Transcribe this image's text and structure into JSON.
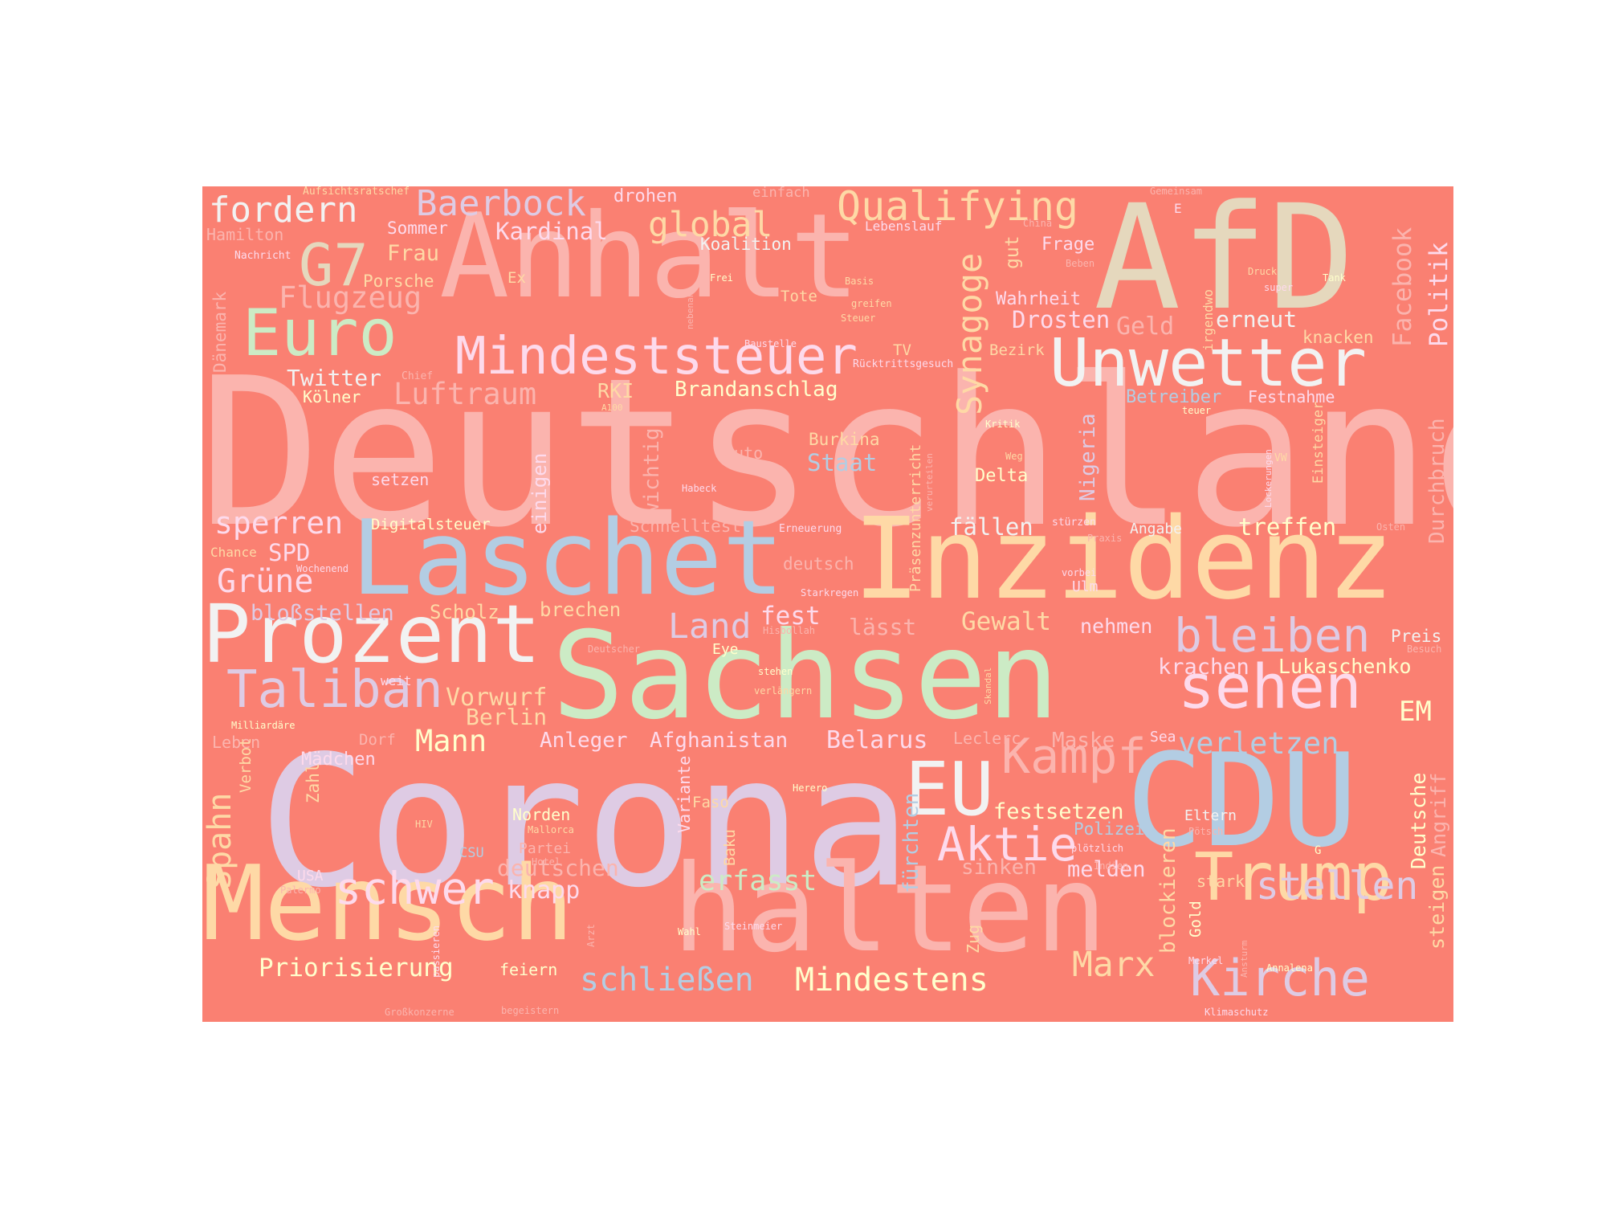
{
  "colors": {
    "canvas_background": "#FA8072",
    "page_background": "#FFFFFF",
    "palette": [
      "#FBB4AE",
      "#B3CDE3",
      "#CCEBC5",
      "#DECBE4",
      "#FED9A6",
      "#FFFFCC",
      "#E5D8BD",
      "#FDDAEC",
      "#F2F2F2"
    ]
  },
  "words": [
    {
      "text": "Deutschland",
      "color": "#FBB4AE"
    },
    {
      "text": "Corona",
      "color": "#DECBE4"
    },
    {
      "text": "Sachsen",
      "color": "#CCEBC5"
    },
    {
      "text": "halten",
      "color": "#FBB4AE"
    },
    {
      "text": "Inzidenz",
      "color": "#FED9A6"
    },
    {
      "text": "Anhalt",
      "color": "#FBB4AE"
    },
    {
      "text": "Laschet",
      "color": "#B3CDE3"
    },
    {
      "text": "AfD",
      "color": "#E5D8BD"
    },
    {
      "text": "Mensch",
      "color": "#FED9A6"
    },
    {
      "text": "CDU",
      "color": "#B3CDE3"
    },
    {
      "text": "Prozent",
      "color": "#F2F2F2"
    },
    {
      "text": "Unwetter",
      "color": "#F2F2F2"
    },
    {
      "text": "EU",
      "color": "#F2F2F2"
    },
    {
      "text": "Trump",
      "color": "#FED9A6"
    },
    {
      "text": "Euro",
      "color": "#CCEBC5"
    },
    {
      "text": "Taliban",
      "color": "#DECBE4"
    },
    {
      "text": "sehen",
      "color": "#FDDAEC"
    },
    {
      "text": "Mindeststeuer",
      "color": "#FDDAEC"
    },
    {
      "text": "Kampf",
      "color": "#FBB4AE"
    },
    {
      "text": "Aktie",
      "color": "#FDDAEC"
    },
    {
      "text": "bleiben",
      "color": "#DECBE4"
    },
    {
      "text": "Kirche",
      "color": "#DECBE4"
    },
    {
      "text": "G7",
      "color": "#E5D8BD"
    },
    {
      "text": "schwer",
      "color": "#FDDAEC"
    },
    {
      "text": "stellen",
      "color": "#DECBE4"
    },
    {
      "text": "Qualifying",
      "color": "#FED9A6"
    },
    {
      "text": "Baerbock",
      "color": "#DECBE4"
    },
    {
      "text": "fordern",
      "color": "#F2F2F2"
    },
    {
      "text": "Synagoge",
      "color": "#FED9A6"
    },
    {
      "text": "Land",
      "color": "#DECBE4"
    },
    {
      "text": "Marx",
      "color": "#FED9A6"
    },
    {
      "text": "Mindestens",
      "color": "#FFFFCC"
    },
    {
      "text": "schließen",
      "color": "#B3CDE3"
    },
    {
      "text": "Grüne",
      "color": "#FDDAEC"
    },
    {
      "text": "Spahn",
      "color": "#FED9A6"
    },
    {
      "text": "global",
      "color": "#FED9A6"
    },
    {
      "text": "Flugzeug",
      "color": "#FBB4AE"
    },
    {
      "text": "Luftraum",
      "color": "#FBB4AE"
    },
    {
      "text": "sperren",
      "color": "#FDDAEC"
    },
    {
      "text": "Mann",
      "color": "#FFFFCC"
    },
    {
      "text": "verletzen",
      "color": "#B3CDE3"
    },
    {
      "text": "Politik",
      "color": "#FDDAEC"
    },
    {
      "text": "Facebook",
      "color": "#FBB4AE"
    },
    {
      "text": "Drosten",
      "color": "#FDDAEC"
    },
    {
      "text": "Geld",
      "color": "#FBB4AE"
    },
    {
      "text": "erneut",
      "color": "#F2F2F2"
    },
    {
      "text": "Kardinal",
      "color": "#FDDAEC"
    },
    {
      "text": "Gewalt",
      "color": "#FED9A6"
    },
    {
      "text": "fest",
      "color": "#FDDAEC"
    },
    {
      "text": "erfasst",
      "color": "#CCEBC5"
    },
    {
      "text": "Belarus",
      "color": "#FDDAEC"
    },
    {
      "text": "Lukaschenko",
      "color": "#FFFFCC"
    },
    {
      "text": "krachen",
      "color": "#FDDAEC"
    },
    {
      "text": "festsetzen",
      "color": "#FFFFCC"
    },
    {
      "text": "Priorisierung",
      "color": "#FFFFCC"
    },
    {
      "text": "Brandanschlag",
      "color": "#FFFFCC"
    },
    {
      "text": "Staat",
      "color": "#B3CDE3"
    },
    {
      "text": "fällen",
      "color": "#F2F2F2"
    },
    {
      "text": "treffen",
      "color": "#FFFFCC"
    },
    {
      "text": "EM",
      "color": "#FFFFCC"
    },
    {
      "text": "Deutsche",
      "color": "#FFFFCC"
    },
    {
      "text": "Vorwurf",
      "color": "#FED9A6"
    },
    {
      "text": "Berlin",
      "color": "#FED9A6"
    },
    {
      "text": "Anleger",
      "color": "#FDDAEC"
    },
    {
      "text": "Afghanistan",
      "color": "#FDDAEC"
    },
    {
      "text": "knapp",
      "color": "#FDDAEC"
    },
    {
      "text": "deutschen",
      "color": "#FBB4AE"
    },
    {
      "text": "Maske",
      "color": "#FBB4AE"
    },
    {
      "text": "melden",
      "color": "#FDDAEC"
    },
    {
      "text": "sinken",
      "color": "#FBB4AE"
    },
    {
      "text": "nehmen",
      "color": "#FDDAEC"
    },
    {
      "text": "lässt",
      "color": "#FBB4AE"
    },
    {
      "text": "Durchbruch",
      "color": "#FBB4AE"
    },
    {
      "text": "Nigeria",
      "color": "#DECBE4"
    },
    {
      "text": "Präsenzunterricht",
      "color": "#FED9A6"
    },
    {
      "text": "fürchten",
      "color": "#B3CDE3"
    },
    {
      "text": "blockieren",
      "color": "#FED9A6"
    },
    {
      "text": "steigen",
      "color": "#FED9A6"
    },
    {
      "text": "Angriff",
      "color": "#FBB4AE"
    },
    {
      "text": "SPD",
      "color": "#FDDAEC"
    },
    {
      "text": "bloßstellen",
      "color": "#DECBE4"
    },
    {
      "text": "Scholz",
      "color": "#FED9A6"
    },
    {
      "text": "brechen",
      "color": "#FED9A6"
    },
    {
      "text": "wichtig",
      "color": "#FBB4AE"
    },
    {
      "text": "einigen",
      "color": "#FDDAEC"
    },
    {
      "text": "Twitter",
      "color": "#F2F2F2"
    },
    {
      "text": "Frau",
      "color": "#FED9A6"
    },
    {
      "text": "Sommer",
      "color": "#FDDAEC"
    },
    {
      "text": "Hamilton",
      "color": "#FBB4AE"
    },
    {
      "text": "drohen",
      "color": "#FDDAEC"
    },
    {
      "text": "Koalition",
      "color": "#F2F2F2"
    },
    {
      "text": "Frage",
      "color": "#FDDAEC"
    },
    {
      "text": "Wahrheit",
      "color": "#FDDAEC"
    },
    {
      "text": "gut",
      "color": "#FED9A6"
    },
    {
      "text": "Betreiber",
      "color": "#B3CDE3"
    },
    {
      "text": "Festnahme",
      "color": "#FDDAEC"
    },
    {
      "text": "knacken",
      "color": "#FED9A6"
    },
    {
      "text": "RKI",
      "color": "#FED9A6"
    },
    {
      "text": "Delta",
      "color": "#FFFFCC"
    },
    {
      "text": "Burkina",
      "color": "#FED9A6"
    },
    {
      "text": "Auto",
      "color": "#FBB4AE"
    },
    {
      "text": "Schnelltest",
      "color": "#FBB4AE"
    },
    {
      "text": "Digitalsteuer",
      "color": "#FFFFCC"
    },
    {
      "text": "setzen",
      "color": "#FDDAEC"
    },
    {
      "text": "Kölner",
      "color": "#FFFFCC"
    },
    {
      "text": "Porsche",
      "color": "#FED9A6"
    },
    {
      "text": "Dänemark",
      "color": "#FBB4AE"
    },
    {
      "text": "Ex",
      "color": "#FED9A6"
    },
    {
      "text": "Tote",
      "color": "#FED9A6"
    },
    {
      "text": "TV",
      "color": "#FED9A6"
    },
    {
      "text": "Bezirk",
      "color": "#FED9A6"
    },
    {
      "text": "Ulm",
      "color": "#FDDAEC"
    },
    {
      "text": "Angabe",
      "color": "#F2F2F2"
    },
    {
      "text": "Einsteiger",
      "color": "#FED9A6"
    },
    {
      "text": "Preis",
      "color": "#F2F2F2"
    },
    {
      "text": "Eye",
      "color": "#FFFFCC"
    },
    {
      "text": "deutsch",
      "color": "#FBB4AE"
    },
    {
      "text": "Leclerc",
      "color": "#FBB4AE"
    },
    {
      "text": "Sea",
      "color": "#FDDAEC"
    },
    {
      "text": "Mädchen",
      "color": "#FDDAEC"
    },
    {
      "text": "Dorf",
      "color": "#FBB4AE"
    },
    {
      "text": "Leben",
      "color": "#FBB4AE"
    },
    {
      "text": "Zahl",
      "color": "#FED9A6"
    },
    {
      "text": "Verbot",
      "color": "#FED9A6"
    },
    {
      "text": "Variante",
      "color": "#FDDAEC"
    },
    {
      "text": "Faso",
      "color": "#FED9A6"
    },
    {
      "text": "Baku",
      "color": "#FED9A6"
    },
    {
      "text": "Norden",
      "color": "#FFFFCC"
    },
    {
      "text": "Partei",
      "color": "#FBB4AE"
    },
    {
      "text": "CSU",
      "color": "#B3CDE3"
    },
    {
      "text": "USA",
      "color": "#FDDAEC"
    },
    {
      "text": "Polizei",
      "color": "#B3CDE3"
    },
    {
      "text": "Eltern",
      "color": "#F2F2F2"
    },
    {
      "text": "stark",
      "color": "#FED9A6"
    },
    {
      "text": "Gold",
      "color": "#FFFFCC"
    },
    {
      "text": "Zug",
      "color": "#FED9A6"
    },
    {
      "text": "feiern",
      "color": "#FFFFCC"
    },
    {
      "text": "weit",
      "color": "#FDDAEC"
    },
    {
      "text": "Chance",
      "color": "#FED9A6"
    },
    {
      "text": "Aufsichtsratschef",
      "color": "#FED9A6"
    },
    {
      "text": "einfach",
      "color": "#FBB4AE"
    },
    {
      "text": "Lebenslauf",
      "color": "#FDDAEC"
    },
    {
      "text": "China",
      "color": "#FBB4AE"
    },
    {
      "text": "Gemeinsam",
      "color": "#FBB4AE"
    },
    {
      "text": "E",
      "color": "#FDDAEC"
    },
    {
      "text": "Beben",
      "color": "#FBB4AE"
    },
    {
      "text": "Nachricht",
      "color": "#FDDAEC"
    },
    {
      "text": "Frei",
      "color": "#FFFFCC"
    },
    {
      "text": "nebenan",
      "color": "#FBB4AE"
    },
    {
      "text": "Basis",
      "color": "#FED9A6"
    },
    {
      "text": "greifen",
      "color": "#FED9A6"
    },
    {
      "text": "Steuer",
      "color": "#FED9A6"
    },
    {
      "text": "Druck",
      "color": "#FED9A6"
    },
    {
      "text": "super",
      "color": "#FDDAEC"
    },
    {
      "text": "Tank",
      "color": "#FFFFCC"
    },
    {
      "text": "irgendwo",
      "color": "#FED9A6"
    },
    {
      "text": "Baustelle",
      "color": "#FDDAEC"
    },
    {
      "text": "Rücktrittsgesuch",
      "color": "#FDDAEC"
    },
    {
      "text": "Chief",
      "color": "#FBB4AE"
    },
    {
      "text": "A100",
      "color": "#FED9A6"
    },
    {
      "text": "teuer",
      "color": "#FFFFCC"
    },
    {
      "text": "Kritik",
      "color": "#FFFFCC"
    },
    {
      "text": "Weg",
      "color": "#FED9A6"
    },
    {
      "text": "Lockerungen",
      "color": "#FDDAEC"
    },
    {
      "text": "VW",
      "color": "#FED9A6"
    },
    {
      "text": "verurteilen",
      "color": "#FBB4AE"
    },
    {
      "text": "Habeck",
      "color": "#FDDAEC"
    },
    {
      "text": "Erneuerung",
      "color": "#FDDAEC"
    },
    {
      "text": "stürzen",
      "color": "#FDDAEC"
    },
    {
      "text": "Praxis",
      "color": "#FBB4AE"
    },
    {
      "text": "Osten",
      "color": "#FBB4AE"
    },
    {
      "text": "Wochenend",
      "color": "#FDDAEC"
    },
    {
      "text": "Starkregen",
      "color": "#FDDAEC"
    },
    {
      "text": "vorbei",
      "color": "#FDDAEC"
    },
    {
      "text": "Hisbollah",
      "color": "#FBB4AE"
    },
    {
      "text": "Deutscher",
      "color": "#FBB4AE"
    },
    {
      "text": "Besuch",
      "color": "#FBB4AE"
    },
    {
      "text": "stehen",
      "color": "#FFFFCC"
    },
    {
      "text": "verlängern",
      "color": "#FED9A6"
    },
    {
      "text": "Skandal",
      "color": "#FED9A6"
    },
    {
      "text": "Milliardäre",
      "color": "#FFFFCC"
    },
    {
      "text": "Herero",
      "color": "#FFFFCC"
    },
    {
      "text": "HIV",
      "color": "#FED9A6"
    },
    {
      "text": "Mallorca",
      "color": "#FED9A6"
    },
    {
      "text": "Hotel",
      "color": "#FBB4AE"
    },
    {
      "text": "plötzlich",
      "color": "#FDDAEC"
    },
    {
      "text": "Pötsch",
      "color": "#FBB4AE"
    },
    {
      "text": "G",
      "color": "#FFFFCC"
    },
    {
      "text": "Indien",
      "color": "#FBB4AE"
    },
    {
      "text": "Palermo",
      "color": "#FBB4AE"
    },
    {
      "text": "passieren",
      "color": "#FDDAEC"
    },
    {
      "text": "Arzt",
      "color": "#FBB4AE"
    },
    {
      "text": "Wahl",
      "color": "#FFFFCC"
    },
    {
      "text": "Steinmeier",
      "color": "#FDDAEC"
    },
    {
      "text": "Merkel",
      "color": "#FDDAEC"
    },
    {
      "text": "Ansturm",
      "color": "#FBB4AE"
    },
    {
      "text": "Annalena",
      "color": "#FFFFCC"
    },
    {
      "text": "Klimaschutz",
      "color": "#FDDAEC"
    },
    {
      "text": "Großkonzerne",
      "color": "#FBB4AE"
    },
    {
      "text": "begeistern",
      "color": "#FBB4AE"
    }
  ]
}
